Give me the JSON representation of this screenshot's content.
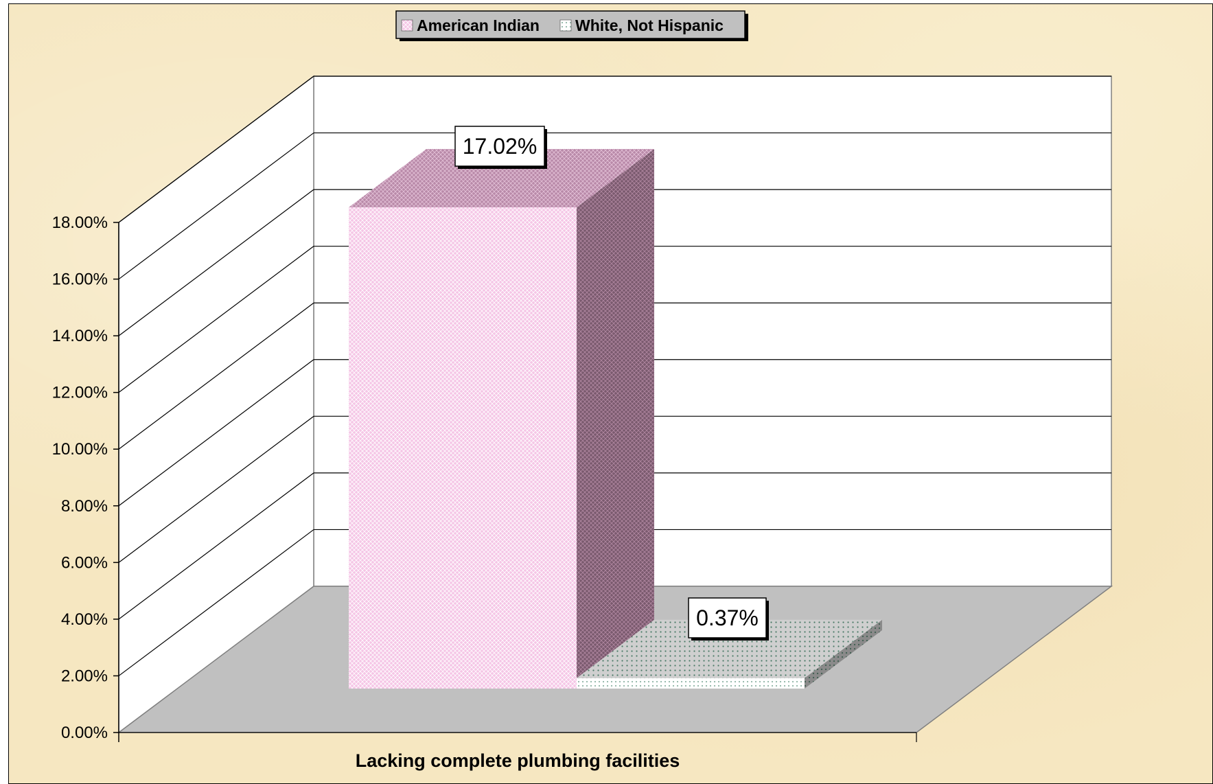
{
  "chart_data": {
    "type": "bar",
    "style": "3d-clustered-column",
    "categories": [
      "Lacking complete plumbing facilities"
    ],
    "series": [
      {
        "name": "American Indian",
        "values": [
          17.02
        ],
        "data_labels": [
          "17.02%"
        ],
        "color": "#f5c6e6",
        "pattern": "diamond-grid"
      },
      {
        "name": "White, Not Hispanic",
        "values": [
          0.37
        ],
        "data_labels": [
          "0.37%"
        ],
        "color": "#ffffff",
        "pattern": "dots"
      }
    ],
    "y_ticks": [
      "0.00%",
      "2.00%",
      "4.00%",
      "6.00%",
      "8.00%",
      "10.00%",
      "12.00%",
      "14.00%",
      "16.00%",
      "18.00%"
    ],
    "ylim": [
      0,
      18
    ],
    "grid": true,
    "legend_position": "top-center",
    "floor_color": "#c0c0c0",
    "wall_color": "#ffffff",
    "background_color": "#f6e7c1"
  }
}
